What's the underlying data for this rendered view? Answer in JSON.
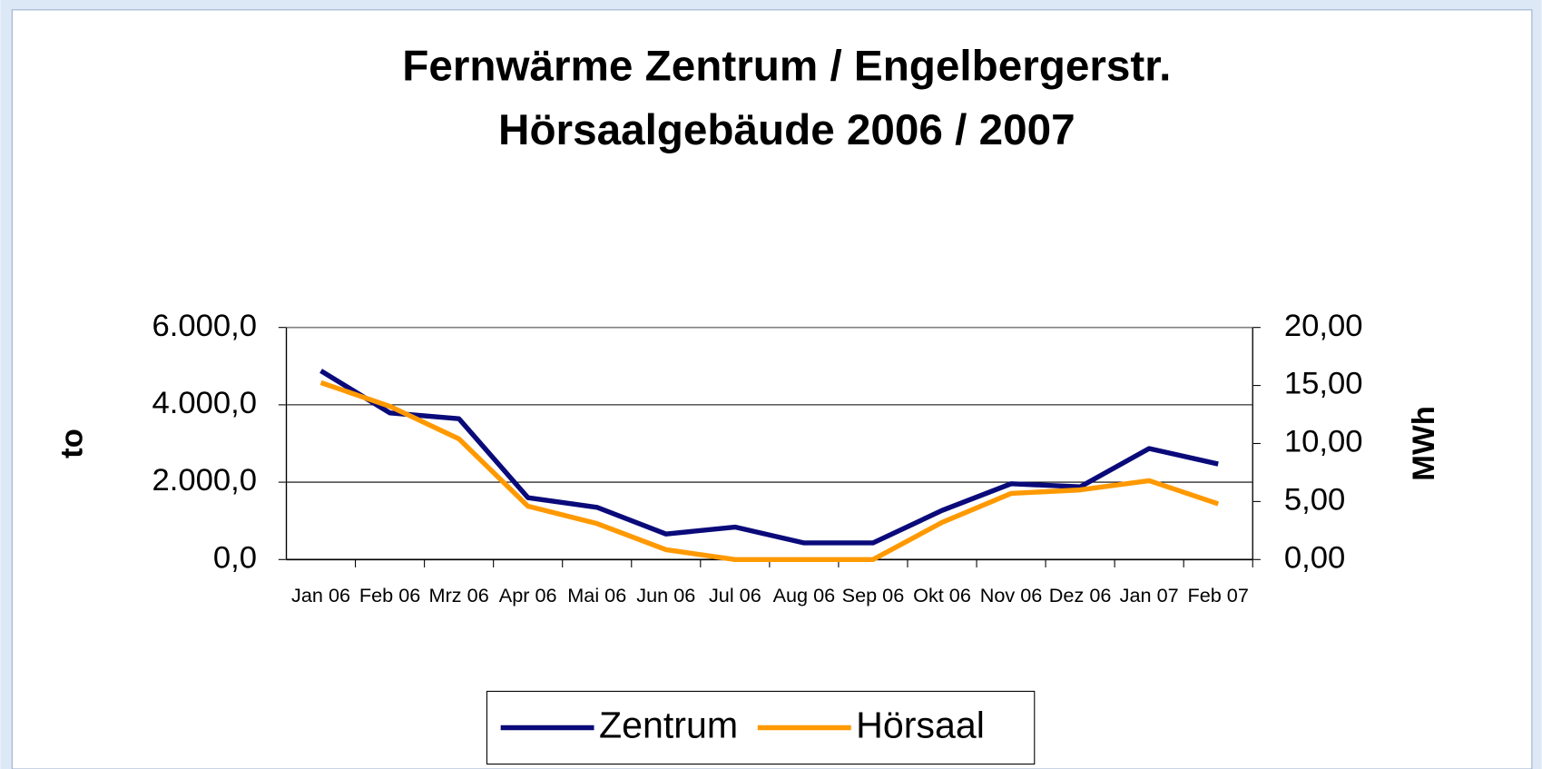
{
  "chart_data": {
    "type": "line",
    "title": [
      "Fernwärme  Zentrum / Engelbergerstr.",
      "Hörsaalgebäude 2006 / 2007"
    ],
    "y_label": "to",
    "y2_label": "MWh",
    "categories": [
      "Jan 06",
      "Feb 06",
      "Mrz 06",
      "Apr 06",
      "Mai 06",
      "Jun 06",
      "Jul 06",
      "Aug 06",
      "Sep 06",
      "Okt 06",
      "Nov 06",
      "Dez 06",
      "Jan 07",
      "Feb 07"
    ],
    "series": [
      {
        "name": "Zentrum",
        "color": "#0a0a7a",
        "values": [
          4880,
          3790,
          3640,
          1600,
          1350,
          660,
          840,
          430,
          430,
          1270,
          1960,
          1880,
          2870,
          2470
        ]
      },
      {
        "name": "Hörsaal",
        "color": "#ff9900",
        "axis": "y2",
        "values": [
          15.25,
          13.2,
          10.4,
          4.6,
          3.1,
          0.85,
          0,
          0,
          0,
          3.2,
          5.7,
          6.0,
          6.8,
          4.8
        ]
      }
    ],
    "ylim": [
      0,
      6000
    ],
    "yticks": [
      {
        "value": 0,
        "label": "0,0"
      },
      {
        "value": 2000,
        "label": "2.000,0"
      },
      {
        "value": 4000,
        "label": "4.000,0"
      },
      {
        "value": 6000,
        "label": "6.000,0"
      }
    ],
    "y2lim": [
      0,
      20
    ],
    "y2ticks": [
      {
        "value": 0,
        "label": "0,00"
      },
      {
        "value": 5,
        "label": "5,00"
      },
      {
        "value": 10,
        "label": "10,00"
      },
      {
        "value": 15,
        "label": "15,00"
      },
      {
        "value": 20,
        "label": "20,00"
      }
    ],
    "grid": true,
    "legend": "bottom"
  }
}
